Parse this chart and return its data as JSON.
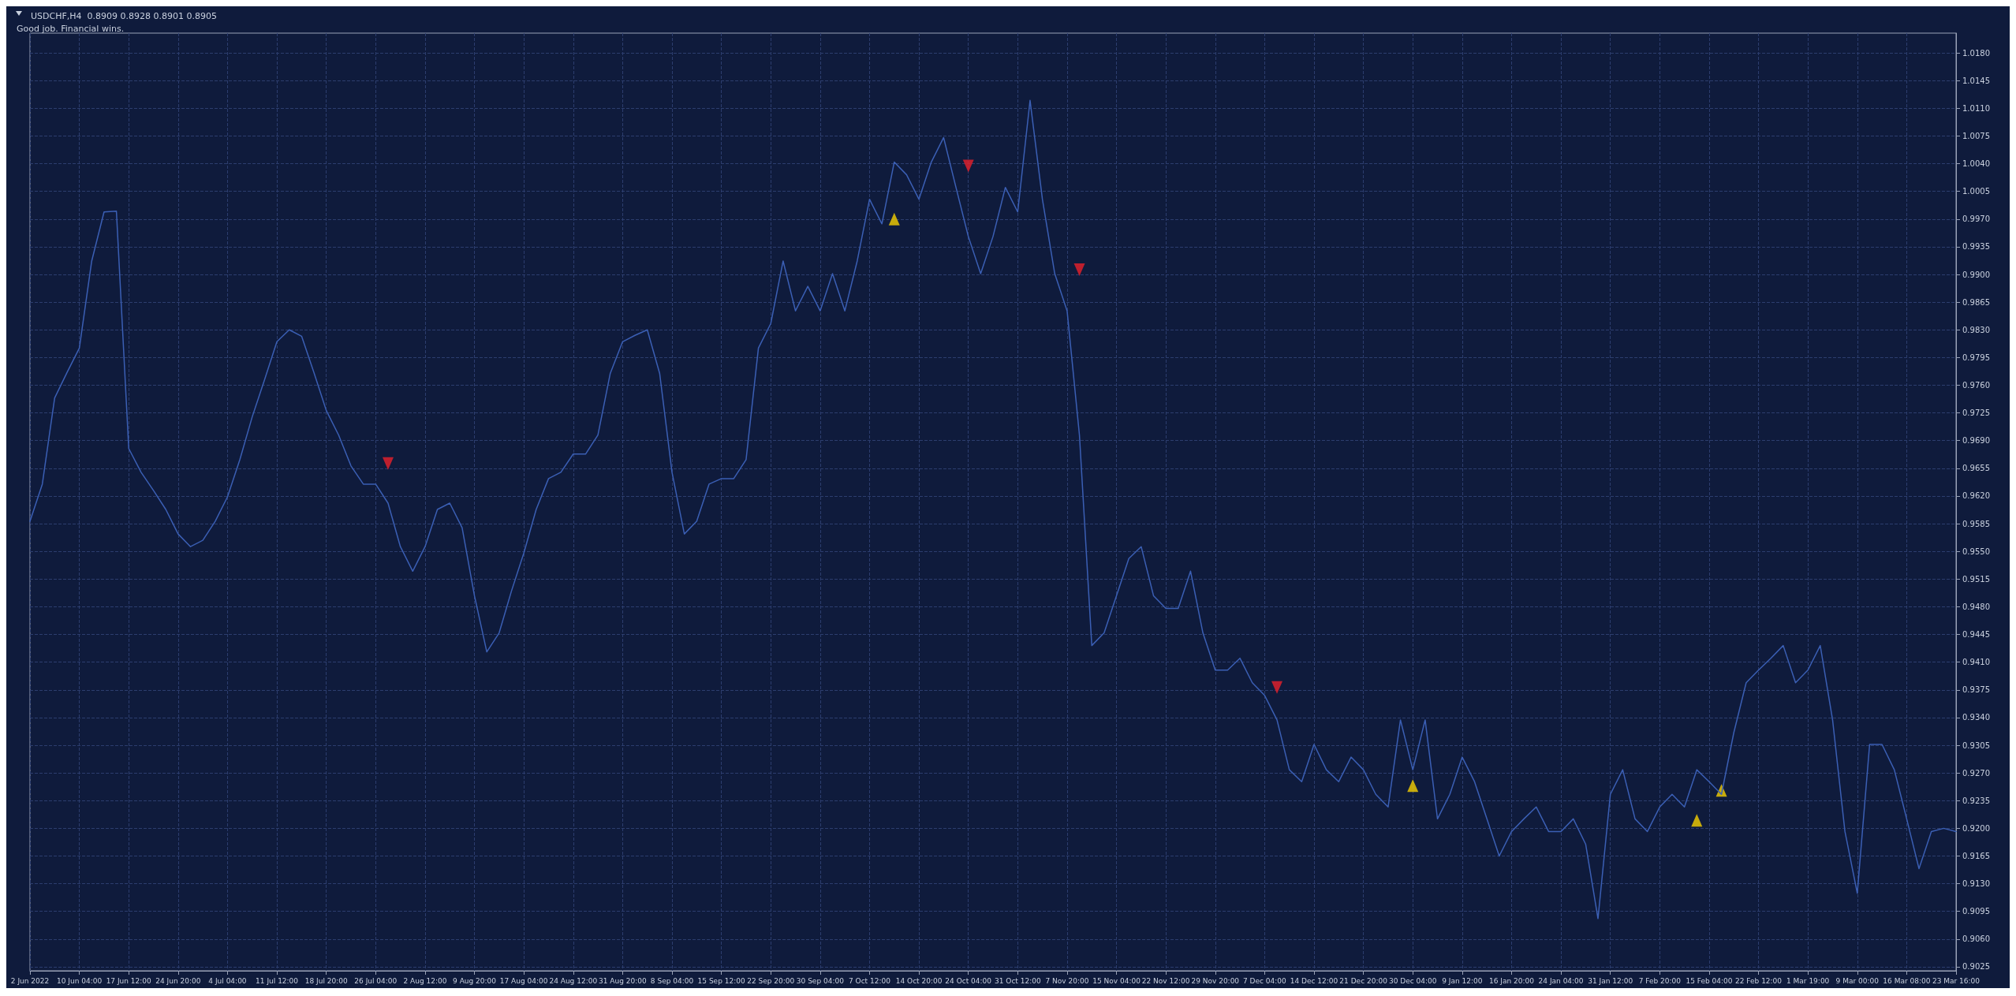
{
  "chart_data": {
    "type": "line",
    "title": "USDCHF,H4  0.8909 0.8928 0.8901 0.8905",
    "subtitle": "Good job. Financial wins.",
    "categories": [
      "2 Jun 2022",
      null,
      null,
      null,
      "10 Jun 04:00",
      null,
      null,
      null,
      "17 Jun 12:00",
      null,
      null,
      null,
      "24 Jun 20:00",
      null,
      null,
      null,
      "4 Jul 04:00",
      null,
      null,
      null,
      "11 Jul 12:00",
      null,
      null,
      null,
      "18 Jul 20:00",
      null,
      null,
      null,
      "26 Jul 04:00",
      null,
      null,
      null,
      "2 Aug 12:00",
      null,
      null,
      null,
      "9 Aug 20:00",
      null,
      null,
      null,
      "17 Aug 04:00",
      null,
      null,
      null,
      "24 Aug 12:00",
      null,
      null,
      null,
      "31 Aug 20:00",
      null,
      null,
      null,
      "8 Sep 04:00",
      null,
      null,
      null,
      "15 Sep 12:00",
      null,
      null,
      null,
      "22 Sep 20:00",
      null,
      null,
      null,
      "30 Sep 04:00",
      null,
      null,
      null,
      "7 Oct 12:00",
      null,
      null,
      null,
      "14 Oct 20:00",
      null,
      null,
      null,
      "24 Oct 04:00",
      null,
      null,
      null,
      "31 Oct 12:00",
      null,
      null,
      null,
      "7 Nov 20:00",
      null,
      null,
      null,
      "15 Nov 04:00",
      null,
      null,
      null,
      "22 Nov 12:00",
      null,
      null,
      null,
      "29 Nov 20:00",
      null,
      null,
      null,
      "7 Dec 04:00",
      null,
      null,
      null,
      "14 Dec 12:00",
      null,
      null,
      null,
      "21 Dec 20:00",
      null,
      null,
      null,
      "30 Dec 04:00",
      null,
      null,
      null,
      "9 Jan 12:00",
      null,
      null,
      null,
      "16 Jan 20:00",
      null,
      null,
      null,
      "24 Jan 04:00",
      null,
      null,
      null,
      "31 Jan 12:00",
      null,
      null,
      null,
      "7 Feb 20:00",
      null,
      null,
      null,
      "15 Feb 04:00",
      null,
      null,
      null,
      "22 Feb 12:00",
      null,
      null,
      null,
      "1 Mar 19:00",
      null,
      null,
      null,
      "9 Mar 00:00",
      null,
      null,
      null,
      "16 Mar 08:00",
      null,
      null,
      null,
      "23 Mar 16:00"
    ],
    "series": [
      {
        "color": "#3b5fb4",
        "values": [
          0.9588,
          0.9635,
          0.9744,
          0.9776,
          0.9807,
          0.9917,
          0.9979,
          0.998,
          0.968,
          0.965,
          0.9627,
          0.9603,
          0.9572,
          0.9556,
          0.9564,
          0.9588,
          0.9619,
          0.9666,
          0.972,
          0.9767,
          0.9815,
          0.983,
          0.9822,
          0.9776,
          0.9728,
          0.9697,
          0.9658,
          0.9635,
          0.9635,
          0.9611,
          0.9556,
          0.9525,
          0.9556,
          0.9603,
          0.9611,
          0.958,
          0.9494,
          0.9423,
          0.9447,
          0.95,
          0.9548,
          0.9603,
          0.9642,
          0.965,
          0.9673,
          0.9673,
          0.9697,
          0.9775,
          0.9815,
          0.9823,
          0.983,
          0.9775,
          0.965,
          0.9572,
          0.9588,
          0.9635,
          0.9642,
          0.9642,
          0.9666,
          0.9807,
          0.9838,
          0.9917,
          0.9854,
          0.9885,
          0.9854,
          0.9901,
          0.9854,
          0.9917,
          0.9995,
          0.9964,
          1.0042,
          1.0026,
          0.9995,
          1.0042,
          1.0073,
          1.001,
          0.9948,
          0.9901,
          0.9948,
          1.001,
          0.9979,
          1.012,
          0.9995,
          0.9901,
          0.9854,
          0.9697,
          0.9431,
          0.9447,
          0.9494,
          0.9541,
          0.9556,
          0.9494,
          0.9478,
          0.9478,
          0.9525,
          0.9447,
          0.94,
          0.94,
          0.9415,
          0.9384,
          0.9368,
          0.9337,
          0.9274,
          0.9259,
          0.9306,
          0.9274,
          0.9259,
          0.929,
          0.9274,
          0.9243,
          0.9227,
          0.9337,
          0.9274,
          0.9337,
          0.9212,
          0.9243,
          0.929,
          0.9259,
          0.9212,
          0.9165,
          0.9196,
          0.9212,
          0.9227,
          0.9196,
          0.9196,
          0.9212,
          0.918,
          0.9086,
          0.9243,
          0.9274,
          0.9212,
          0.9196,
          0.9227,
          0.9243,
          0.9227,
          0.9274,
          0.9259,
          0.9243,
          0.9321,
          0.9384,
          0.94,
          0.9415,
          0.9431,
          0.9384,
          0.94,
          0.9431,
          0.9337,
          0.9196,
          0.9118,
          0.9306,
          0.9306,
          0.9274,
          0.9212,
          0.9149,
          0.9196,
          0.92,
          0.9196
        ]
      },
      {
        "type": "scatter",
        "color": "#f5d000",
        "marker": "triangle",
        "values": [
          null,
          null,
          null,
          null,
          null,
          null,
          null,
          null,
          null,
          null,
          null,
          null,
          null,
          null,
          null,
          null,
          null,
          null,
          null,
          null,
          null,
          null,
          null,
          null,
          null,
          null,
          null,
          null,
          null,
          null,
          null,
          null,
          null,
          null,
          null,
          null,
          null,
          null,
          null,
          null,
          null,
          null,
          null,
          null,
          null,
          null,
          null,
          null,
          null,
          null,
          null,
          null,
          null,
          null,
          null,
          null,
          null,
          null,
          null,
          null,
          null,
          null,
          null,
          null,
          null,
          null,
          null,
          null,
          null,
          null,
          0.997,
          null,
          null,
          null,
          null,
          null,
          null,
          null,
          null,
          null,
          null,
          null,
          null,
          null,
          null,
          null,
          null,
          null,
          null,
          null,
          null,
          null,
          null,
          null,
          null,
          null,
          null,
          null,
          null,
          null,
          null,
          null,
          null,
          null,
          null,
          null,
          null,
          null,
          null,
          null,
          null,
          null,
          0.9254,
          null,
          null,
          null,
          null,
          null,
          null,
          null,
          null,
          null,
          null,
          null,
          null,
          null,
          null,
          null,
          null,
          null,
          null,
          null,
          null,
          null,
          null,
          0.921,
          null,
          0.9248,
          null,
          null,
          null,
          null,
          null,
          null,
          null,
          null,
          null,
          null,
          null,
          null,
          null,
          null,
          null,
          null,
          null,
          null,
          null
        ]
      },
      {
        "type": "scatter",
        "color": "#e8202a",
        "marker": "triangle",
        "values": [
          null,
          null,
          null,
          null,
          null,
          null,
          null,
          null,
          null,
          null,
          null,
          null,
          null,
          null,
          null,
          null,
          null,
          null,
          null,
          null,
          null,
          null,
          null,
          null,
          null,
          null,
          null,
          null,
          null,
          0.9661,
          null,
          null,
          null,
          null,
          null,
          null,
          null,
          null,
          null,
          null,
          null,
          null,
          null,
          null,
          null,
          null,
          null,
          null,
          null,
          null,
          null,
          null,
          null,
          null,
          null,
          null,
          null,
          null,
          null,
          null,
          null,
          null,
          null,
          null,
          null,
          null,
          null,
          null,
          null,
          null,
          null,
          null,
          null,
          null,
          null,
          null,
          1.0037,
          null,
          null,
          null,
          null,
          null,
          null,
          null,
          null,
          0.9906,
          null,
          null,
          null,
          null,
          null,
          null,
          null,
          null,
          null,
          null,
          null,
          null,
          null,
          null,
          null,
          0.9378,
          null,
          null,
          null,
          null,
          null,
          null,
          null,
          null,
          null,
          null,
          null,
          null,
          null,
          null,
          null,
          null,
          null,
          null,
          null,
          null,
          null,
          null,
          null,
          null,
          null,
          null,
          null,
          null,
          null,
          null,
          null,
          null,
          null,
          null,
          null,
          null,
          null,
          null,
          null,
          null,
          null,
          null,
          null,
          null,
          null,
          null,
          null,
          null,
          null,
          null,
          null,
          null,
          null,
          null,
          null
        ]
      }
    ],
    "ylim": [
      0.902,
      1.0205
    ],
    "yticks": [
      {
        "value": 0.9025,
        "label": "0.9025"
      },
      {
        "value": 0.906,
        "label": "0.9060"
      },
      {
        "value": 0.9095,
        "label": "0.9095"
      },
      {
        "value": 0.913,
        "label": "0.9130"
      },
      {
        "value": 0.9165,
        "label": "0.9165"
      },
      {
        "value": 0.92,
        "label": "0.9200"
      },
      {
        "value": 0.9235,
        "label": "0.9235"
      },
      {
        "value": 0.927,
        "label": "0.9270"
      },
      {
        "value": 0.9305,
        "label": "0.9305"
      },
      {
        "value": 0.934,
        "label": "0.9340"
      },
      {
        "value": 0.9375,
        "label": "0.9375"
      },
      {
        "value": 0.941,
        "label": "0.9410"
      },
      {
        "value": 0.9445,
        "label": "0.9445"
      },
      {
        "value": 0.948,
        "label": "0.9480"
      },
      {
        "value": 0.9515,
        "label": "0.9515"
      },
      {
        "value": 0.955,
        "label": "0.9550"
      },
      {
        "value": 0.9585,
        "label": "0.9585"
      },
      {
        "value": 0.962,
        "label": "0.9620"
      },
      {
        "value": 0.9655,
        "label": "0.9655"
      },
      {
        "value": 0.969,
        "label": "0.9690"
      },
      {
        "value": 0.9725,
        "label": "0.9725"
      },
      {
        "value": 0.976,
        "label": "0.9760"
      },
      {
        "value": 0.9795,
        "label": "0.9795"
      },
      {
        "value": 0.983,
        "label": "0.9830"
      },
      {
        "value": 0.9865,
        "label": "0.9865"
      },
      {
        "value": 0.99,
        "label": "0.9900"
      },
      {
        "value": 0.9935,
        "label": "0.9935"
      },
      {
        "value": 0.997,
        "label": "0.9970"
      },
      {
        "value": 1.0005,
        "label": "1.0005"
      },
      {
        "value": 1.004,
        "label": "1.0040"
      },
      {
        "value": 1.0075,
        "label": "1.0075"
      },
      {
        "value": 1.011,
        "label": "1.0110"
      },
      {
        "value": 1.0145,
        "label": "1.0145"
      },
      {
        "value": 1.018,
        "label": "1.0180"
      }
    ],
    "grid": true
  }
}
